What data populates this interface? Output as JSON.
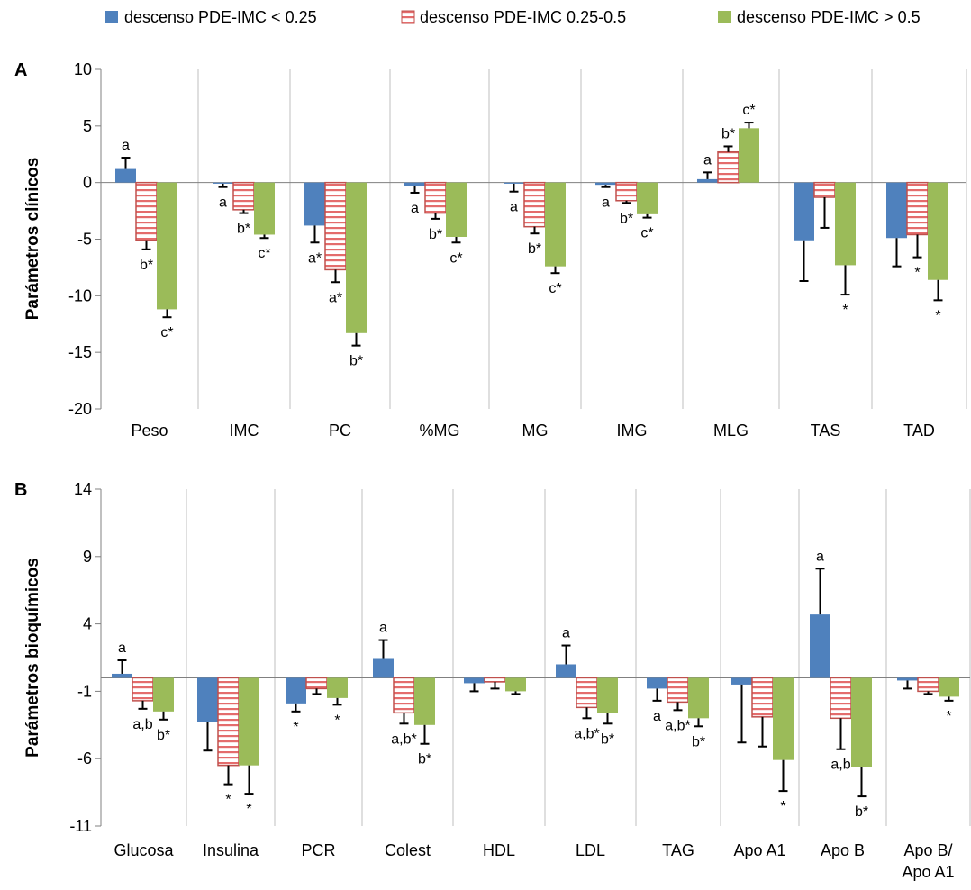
{
  "colors": {
    "s1": "#4F81BD",
    "s2_fill": "#F2B4B4",
    "s2_stripe": "#E46C6C",
    "s2_edge": "#C0504D",
    "s3": "#9BBB59",
    "sep": "#BFBFBF",
    "axis": "#808080"
  },
  "legend": [
    {
      "label": "descenso PDE-IMC < 0.25",
      "pattern": "solid-blue"
    },
    {
      "label": "descenso PDE-IMC 0.25-0.5",
      "pattern": "red-stripes"
    },
    {
      "label": "descenso PDE-IMC > 0.5",
      "pattern": "solid-green"
    }
  ],
  "chart_data": [
    {
      "panel": "A",
      "type": "bar",
      "ylabel": "Parámetros clínicos",
      "ylim": [
        -20,
        10
      ],
      "yticks": [
        10,
        5,
        0,
        -5,
        -10,
        -15,
        -20
      ],
      "categories": [
        "Peso",
        "IMC",
        "PC",
        "%MG",
        "MG",
        "IMG",
        "MLG",
        "TAS",
        "TAD"
      ],
      "series": [
        {
          "name": "descenso PDE-IMC < 0.25",
          "values": [
            1.2,
            -0.1,
            -3.8,
            -0.3,
            -0.1,
            -0.2,
            0.3,
            -5.1,
            -4.9
          ],
          "errors": [
            1.0,
            0.3,
            1.5,
            0.6,
            0.7,
            0.2,
            0.6,
            3.6,
            2.5
          ],
          "labels": [
            "a",
            "a",
            "a*",
            "a",
            "a",
            "a",
            "a",
            "",
            ""
          ]
        },
        {
          "name": "descenso PDE-IMC 0.25-0.5",
          "values": [
            -5.1,
            -2.4,
            -7.7,
            -2.7,
            -3.9,
            -1.6,
            2.7,
            -1.3,
            -4.6
          ],
          "errors": [
            0.8,
            0.3,
            1.1,
            0.5,
            0.6,
            0.2,
            0.5,
            2.7,
            2.0
          ],
          "labels": [
            "b*",
            "b*",
            "a*",
            "b*",
            "b*",
            "b*",
            "b*",
            "",
            "*"
          ]
        },
        {
          "name": "descenso PDE-IMC > 0.5",
          "values": [
            -11.2,
            -4.6,
            -13.3,
            -4.8,
            -7.4,
            -2.8,
            4.8,
            -7.3,
            -8.6
          ],
          "errors": [
            0.7,
            0.3,
            1.1,
            0.5,
            0.6,
            0.3,
            0.5,
            2.6,
            1.8
          ],
          "labels": [
            "c*",
            "c*",
            "b*",
            "c*",
            "c*",
            "c*",
            "c*",
            "*",
            "*"
          ]
        }
      ]
    },
    {
      "panel": "B",
      "type": "bar",
      "ylabel": "Parámetros bioquímicos",
      "ylim": [
        -11,
        14
      ],
      "yticks": [
        14,
        9,
        4,
        -1,
        -6,
        -11
      ],
      "categories": [
        "Glucosa",
        "Insulina",
        "PCR",
        "Colest",
        "HDL",
        "LDL",
        "TAG",
        "Apo A1",
        "Apo B",
        "Apo B/ Apo A1"
      ],
      "series": [
        {
          "name": "descenso PDE-IMC < 0.25",
          "values": [
            0.3,
            -3.3,
            -1.9,
            1.4,
            -0.4,
            1.0,
            -0.8,
            -0.5,
            4.7,
            -0.2
          ],
          "errors": [
            1.0,
            2.1,
            0.6,
            1.4,
            0.6,
            1.4,
            0.9,
            4.3,
            3.4,
            0.6
          ],
          "labels": [
            "a",
            "",
            "*",
            "a",
            "",
            "a",
            "a",
            "",
            "a",
            ""
          ]
        },
        {
          "name": "descenso PDE-IMC 0.25-0.5",
          "values": [
            -1.7,
            -6.5,
            -0.8,
            -2.6,
            -0.3,
            -2.2,
            -1.8,
            -2.9,
            -3.0,
            -1.0
          ],
          "errors": [
            0.6,
            1.4,
            0.4,
            0.8,
            0.5,
            0.8,
            0.6,
            2.2,
            2.3,
            0.2
          ],
          "labels": [
            "a,b",
            "*",
            "",
            "a,b*",
            "",
            "a,b*",
            "a,b*",
            "",
            "a,b",
            ""
          ]
        },
        {
          "name": "descenso PDE-IMC > 0.5",
          "values": [
            -2.5,
            -6.5,
            -1.5,
            -3.5,
            -1.0,
            -2.6,
            -3.0,
            -6.1,
            -6.6,
            -1.4
          ],
          "errors": [
            0.6,
            2.1,
            0.5,
            1.4,
            0.2,
            0.8,
            0.6,
            2.3,
            2.2,
            0.3
          ],
          "labels": [
            "b*",
            "*",
            "*",
            "b*",
            "",
            "b*",
            "b*",
            "*",
            "b*",
            "*"
          ]
        }
      ]
    }
  ]
}
